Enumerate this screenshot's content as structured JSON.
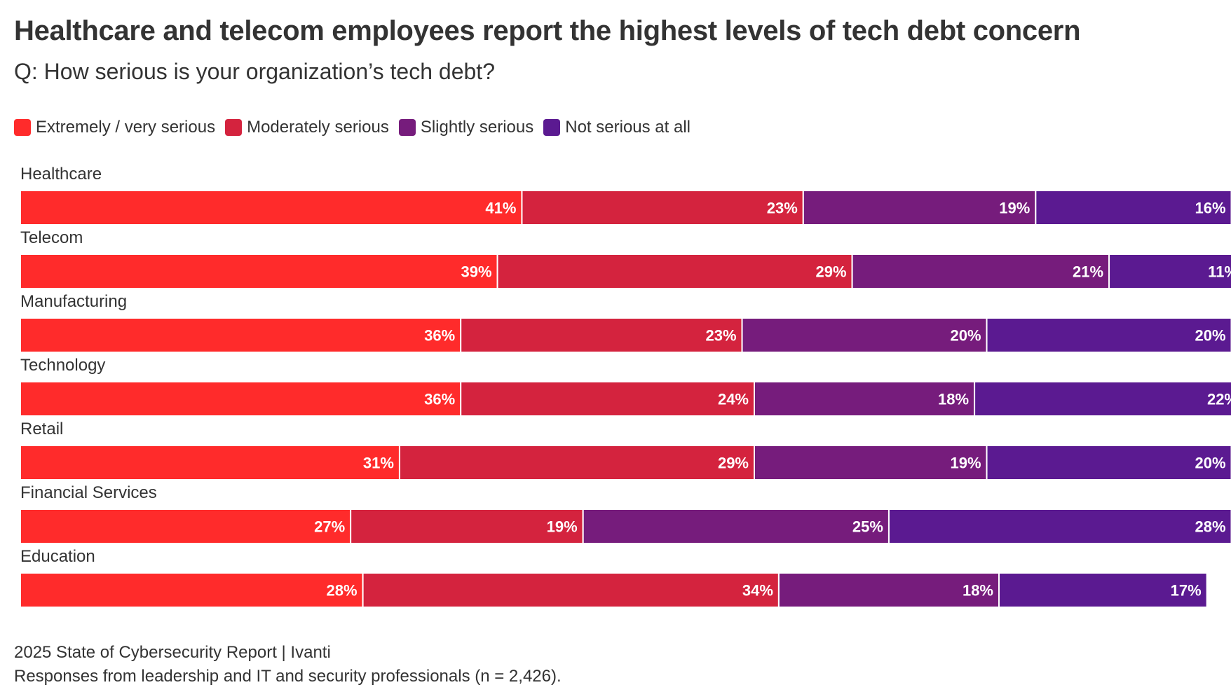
{
  "chart_data": {
    "type": "bar",
    "orientation": "horizontal",
    "stacked": true,
    "title": "Healthcare and telecom employees report the highest levels of tech debt concern",
    "subtitle": "Q: How serious is your organization’s tech debt?",
    "categories": [
      "Healthcare",
      "Telecom",
      "Manufacturing",
      "Technology",
      "Retail",
      "Financial Services",
      "Education"
    ],
    "series": [
      {
        "name": "Extremely / very serious",
        "color": "#ff2b2b",
        "values": [
          41,
          39,
          36,
          36,
          31,
          27,
          28
        ]
      },
      {
        "name": "Moderately serious",
        "color": "#d4233e",
        "values": [
          23,
          29,
          23,
          24,
          29,
          19,
          34
        ]
      },
      {
        "name": "Slightly serious",
        "color": "#761c7c",
        "values": [
          19,
          21,
          20,
          18,
          19,
          25,
          18
        ]
      },
      {
        "name": "Not serious at all",
        "color": "#5b1a91",
        "values": [
          16,
          11,
          20,
          22,
          20,
          28,
          17
        ]
      }
    ],
    "value_suffix": "%",
    "xlim": [
      0,
      100
    ],
    "legend_position": "top-left",
    "grid": false
  },
  "footer": {
    "source": "2025 State of Cybersecurity Report | Ivanti",
    "note": "Responses from leadership and IT and security professionals (n = 2,426)."
  }
}
